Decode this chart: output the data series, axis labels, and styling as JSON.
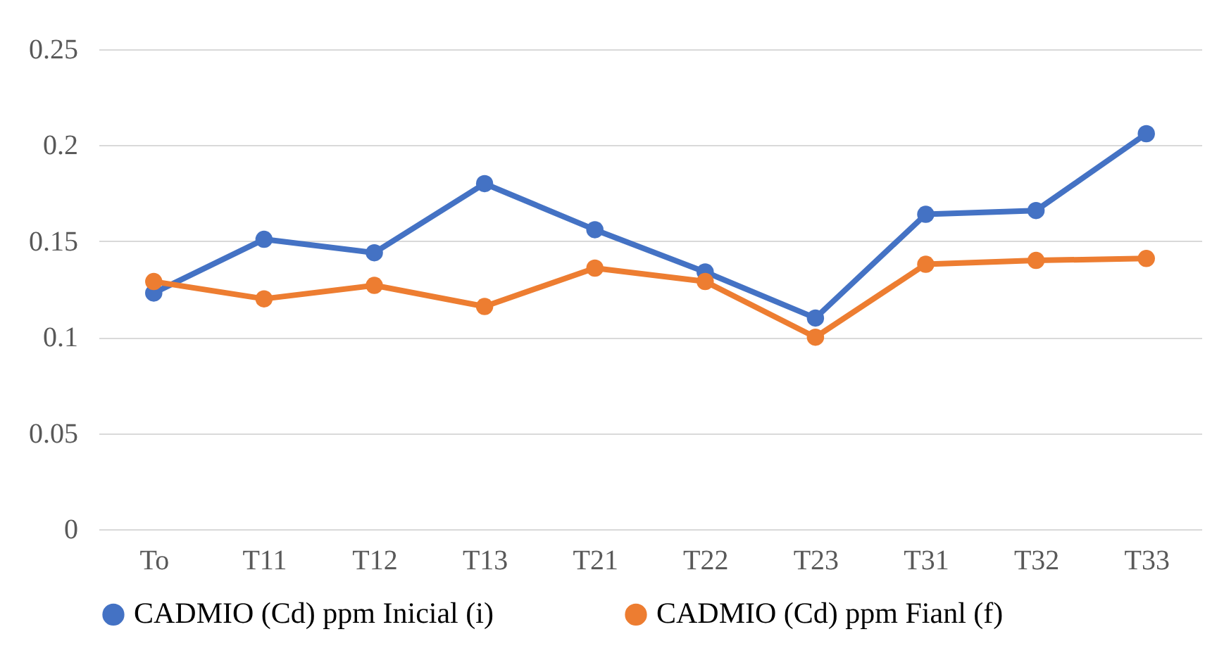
{
  "chart_data": {
    "type": "line",
    "categories": [
      "To",
      "T11",
      "T12",
      "T13",
      "T21",
      "T22",
      "T23",
      "T31",
      "T32",
      "T33"
    ],
    "series": [
      {
        "name": "CADMIO (Cd) ppm Inicial (i)",
        "color": "#4472c4",
        "values": [
          0.123,
          0.151,
          0.144,
          0.18,
          0.156,
          0.134,
          0.11,
          0.164,
          0.166,
          0.206
        ]
      },
      {
        "name": "CADMIO (Cd) ppm Fianl (f)",
        "color": "#ed7d31",
        "values": [
          0.129,
          0.12,
          0.127,
          0.116,
          0.136,
          0.129,
          0.1,
          0.138,
          0.14,
          0.141
        ]
      }
    ],
    "ylim": [
      0,
      0.25
    ],
    "yticks": [
      0,
      0.05,
      0.1,
      0.15,
      0.2,
      0.25
    ],
    "grid": "y",
    "legend": "bottom",
    "marker": "circle",
    "line_style": "solid"
  }
}
